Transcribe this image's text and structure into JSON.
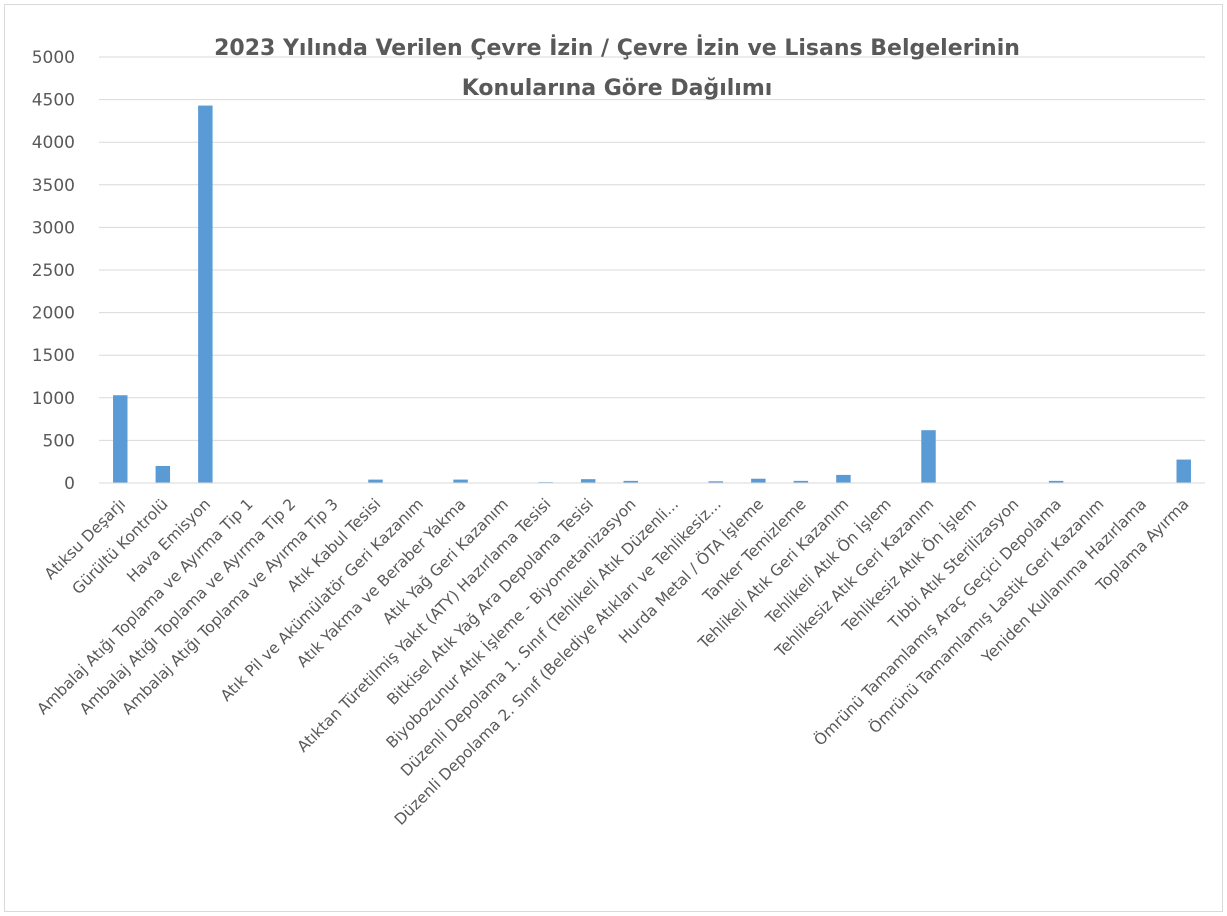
{
  "chart_data": {
    "type": "bar",
    "title_lines": [
      "2023 Yılında Verilen Çevre İzin / Çevre İzin ve Lisans Belgelerinin",
      "Konularına Göre Dağılımı"
    ],
    "xlabel": "",
    "ylabel": "",
    "ylim": [
      0,
      5000
    ],
    "yticks": [
      0,
      500,
      1000,
      1500,
      2000,
      2500,
      3000,
      3500,
      4000,
      4500,
      5000
    ],
    "grid": true,
    "legend": "none",
    "bar_color": "#5b9bd5",
    "categories": [
      "Atıksu Deşarjı",
      "Gürültü Kontrolü",
      "Hava Emisyon",
      "Ambalaj Atığı Toplama ve Ayırma Tip 1",
      "Ambalaj Atığı Toplama ve Ayırma Tip 2",
      "Ambalaj Atığı Toplama ve Ayırma Tip 3",
      "Atık Kabul Tesisi",
      "Atık Pil ve Akümülatör Geri Kazanım",
      "Atık Yakma ve Beraber Yakma",
      "Atık Yağ Geri Kazanım",
      "Atıktan Türetilmiş Yakıt (ATY) Hazırlama Tesisi",
      "Bitkisel Atık Yağ Ara Depolama Tesisi",
      "Biyobozunur Atık İşleme - Biyometanizasyon",
      "Düzenli Depolama 1. Sınıf (Tehlikeli Atık Düzenli...",
      "Düzenli Depolama 2. Sınıf (Belediye Atıkları ve Tehlikesiz...",
      "Hurda Metal / ÖTA İşleme",
      "Tanker Temizleme",
      "Tehlikeli Atık Geri Kazanım",
      "Tehlikeli Atık Ön İşlem",
      "Tehlikesiz Atık Geri Kazanım",
      "Tehlikesiz Atık Ön İşlem",
      "Tıbbi Atık Sterilizasyon",
      "Ömrünü Tamamlamış Araç Geçici Depolama",
      "Ömrünü Tamamlamış Lastik Geri Kazanım",
      "Yeniden Kullanıma Hazırlama",
      "Toplama Ayırma"
    ],
    "values": [
      1030,
      200,
      4430,
      0,
      0,
      0,
      40,
      0,
      40,
      0,
      10,
      45,
      25,
      0,
      20,
      50,
      25,
      95,
      5,
      620,
      5,
      5,
      25,
      5,
      5,
      275
    ]
  }
}
